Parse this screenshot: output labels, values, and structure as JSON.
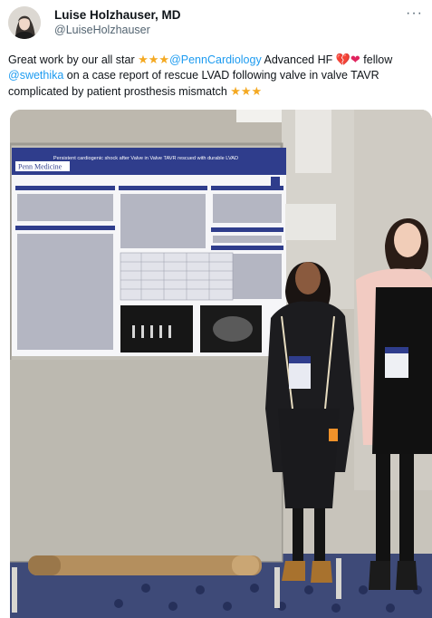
{
  "author": {
    "name": "Luise Holzhauser, MD",
    "handle": "@LuiseHolzhauser",
    "avatar_icon": "profile-photo-icon"
  },
  "more_label": "···",
  "tweet": {
    "t1": "Great work by our all star ",
    "stars": "★★★",
    "m1": "@PennCardiology",
    "t2": " Advanced HF ",
    "hearts": "💔❤",
    "t3": " fellow ",
    "m2": "@swethika",
    "t4": " on a case report of rescue LVAD following valve in valve TAVR complicated by patient prosthesis mismatch "
  },
  "poster": {
    "title": "Persistent cardiogenic shock after Valve in Valve TAVR rescued with durable LVAD",
    "org": "Penn Medicine"
  },
  "colors": {
    "mention": "#1d9bf0",
    "poster_header": "#2f3d8c",
    "star": "#f4a922"
  }
}
